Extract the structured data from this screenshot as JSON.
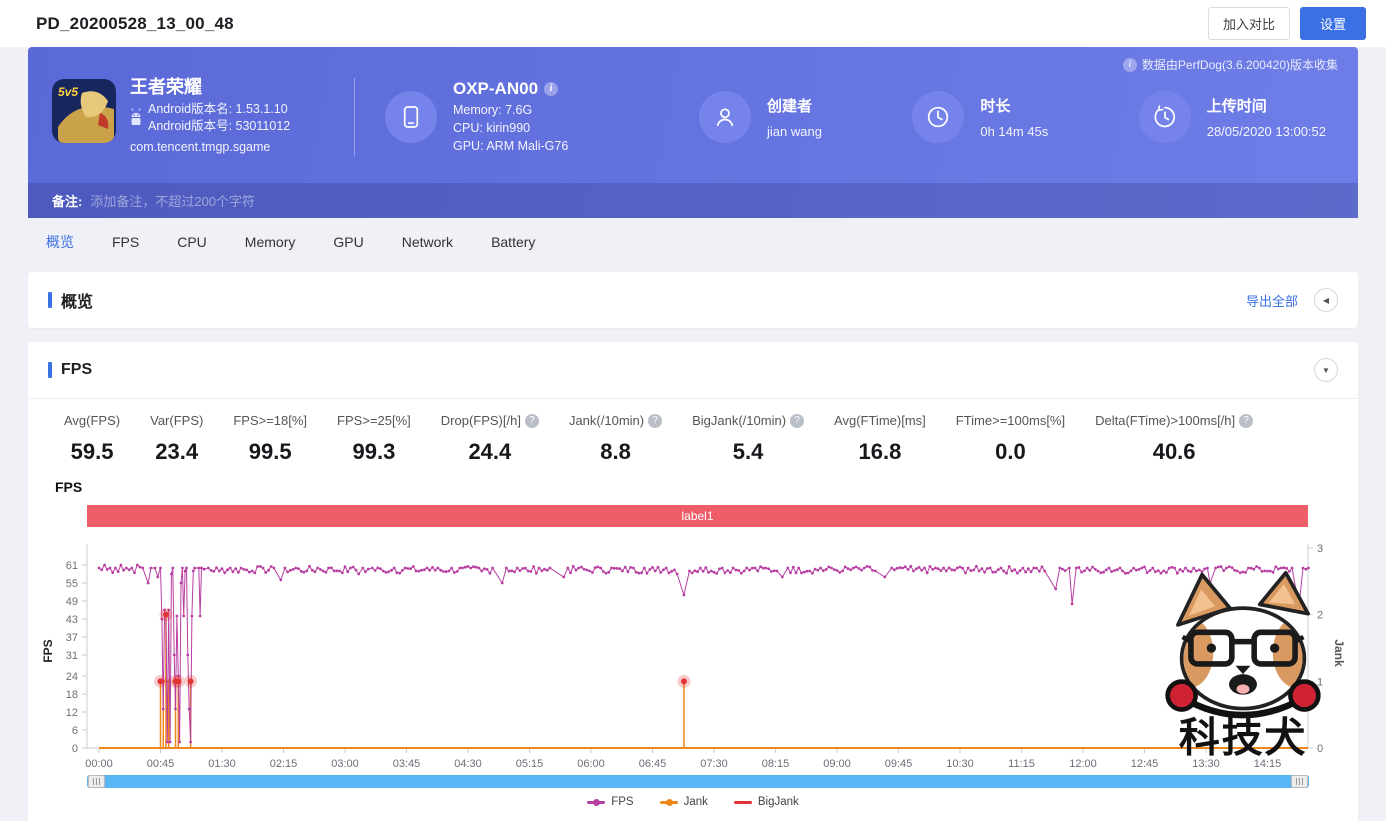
{
  "page": {
    "title": "PD_20200528_13_00_48"
  },
  "topbar": {
    "compare_button": "加入对比",
    "settings_button": "设置"
  },
  "icons": {
    "help": "?",
    "info": "i",
    "collapse_left": "◀",
    "collapse_down": "▼"
  },
  "colors": {
    "accent": "#3a70e3",
    "hero_from": "#5b69d8",
    "hero_to": "#6f7de8",
    "banner": "#ed5e68",
    "fps_line": "#b83fa2",
    "jank_line": "#f0871a",
    "bigjank": "#e23434",
    "scrollbar": "#57b6f3"
  },
  "hero": {
    "collect_note": "数据由PerfDog(3.6.200420)版本收集",
    "app": {
      "name": "王者荣耀",
      "version_name": "Android版本名: 1.53.1.10",
      "version_code": "Android版本号: 53011012",
      "package": "com.tencent.tmgp.sgame",
      "icon_badge": "5v5"
    },
    "device": {
      "model": "OXP-AN00",
      "memory": "Memory: 7.6G",
      "cpu": "CPU: kirin990",
      "gpu": "GPU: ARM Mali-G76"
    },
    "creator": {
      "label": "创建者",
      "value": "jian wang"
    },
    "duration": {
      "label": "时长",
      "value": "0h 14m 45s"
    },
    "upload": {
      "label": "上传时间",
      "value": "28/05/2020 13:00:52"
    },
    "remark": {
      "label": "备注:",
      "placeholder": "添加备注，不超过200个字符"
    }
  },
  "tabs": [
    {
      "label": "概览",
      "active": true
    },
    {
      "label": "FPS",
      "active": false
    },
    {
      "label": "CPU",
      "active": false
    },
    {
      "label": "Memory",
      "active": false
    },
    {
      "label": "GPU",
      "active": false
    },
    {
      "label": "Network",
      "active": false
    },
    {
      "label": "Battery",
      "active": false
    }
  ],
  "overview_section": {
    "title": "概览",
    "export_all": "导出全部"
  },
  "fps_section": {
    "title": "FPS",
    "stats": [
      {
        "label": "Avg(FPS)",
        "value": "59.5",
        "help": false
      },
      {
        "label": "Var(FPS)",
        "value": "23.4",
        "help": false
      },
      {
        "label": "FPS>=18[%]",
        "value": "99.5",
        "help": false
      },
      {
        "label": "FPS>=25[%]",
        "value": "99.3",
        "help": false
      },
      {
        "label": "Drop(FPS)[/h]",
        "value": "24.4",
        "help": true
      },
      {
        "label": "Jank(/10min)",
        "value": "8.8",
        "help": true
      },
      {
        "label": "BigJank(/10min)",
        "value": "5.4",
        "help": true
      },
      {
        "label": "Avg(FTime)[ms]",
        "value": "16.8",
        "help": false
      },
      {
        "label": "FTime>=100ms[%]",
        "value": "0.0",
        "help": false
      },
      {
        "label": "Delta(FTime)>100ms[/h]",
        "value": "40.6",
        "help": true
      }
    ]
  },
  "chart_data": {
    "type": "line",
    "title": "FPS",
    "annotation_label": "label1",
    "duration_s": 885,
    "x_tick_interval_s": 45,
    "x_ticks": [
      "00:00",
      "00:45",
      "01:30",
      "02:15",
      "03:00",
      "03:45",
      "04:30",
      "05:15",
      "06:00",
      "06:45",
      "07:30",
      "08:15",
      "09:00",
      "09:45",
      "10:30",
      "11:15",
      "12:00",
      "12:45",
      "13:30",
      "14:15"
    ],
    "left_axis": {
      "label": "FPS",
      "ticks": [
        0,
        6,
        12,
        18,
        24,
        31,
        37,
        43,
        49,
        55,
        61
      ],
      "max": 61
    },
    "right_axis": {
      "label": "Jank",
      "ticks": [
        0,
        1,
        2,
        3
      ],
      "max": 3
    },
    "legend": [
      "FPS",
      "Jank",
      "BigJank"
    ],
    "series": [
      {
        "name": "FPS",
        "axis": "left",
        "color": "#b83fa2",
        "points": [
          [
            0,
            60
          ],
          [
            4,
            61
          ],
          [
            8,
            60
          ],
          [
            12,
            60
          ],
          [
            16,
            61
          ],
          [
            20,
            60
          ],
          [
            24,
            60
          ],
          [
            28,
            61
          ],
          [
            32,
            60
          ],
          [
            36,
            55
          ],
          [
            38,
            60
          ],
          [
            41,
            60
          ],
          [
            43,
            57
          ],
          [
            45,
            60
          ],
          [
            46,
            43
          ],
          [
            47,
            13
          ],
          [
            48,
            46
          ],
          [
            49,
            44
          ],
          [
            50,
            2
          ],
          [
            51,
            46
          ],
          [
            52,
            2
          ],
          [
            53,
            58
          ],
          [
            54,
            60
          ],
          [
            55,
            31
          ],
          [
            56,
            13
          ],
          [
            57,
            44
          ],
          [
            58,
            24
          ],
          [
            59,
            2
          ],
          [
            60,
            55
          ],
          [
            61,
            60
          ],
          [
            62,
            44
          ],
          [
            63,
            59
          ],
          [
            64,
            60
          ],
          [
            65,
            31
          ],
          [
            66,
            13
          ],
          [
            67,
            2
          ],
          [
            68,
            44
          ],
          [
            69,
            59
          ],
          [
            70,
            60
          ],
          [
            73,
            60
          ],
          [
            74,
            44
          ],
          [
            75,
            60
          ],
          [
            80,
            60
          ],
          [
            88,
            59
          ],
          [
            96,
            60
          ],
          [
            104,
            60
          ],
          [
            112,
            59
          ],
          [
            120,
            60
          ],
          [
            128,
            60
          ],
          [
            133,
            56
          ],
          [
            136,
            60
          ],
          [
            144,
            60
          ],
          [
            152,
            59
          ],
          [
            160,
            60
          ],
          [
            168,
            60
          ],
          [
            176,
            59
          ],
          [
            184,
            60
          ],
          [
            190,
            58
          ],
          [
            193,
            60
          ],
          [
            200,
            60
          ],
          [
            208,
            59
          ],
          [
            216,
            60
          ],
          [
            224,
            60
          ],
          [
            232,
            59
          ],
          [
            240,
            60
          ],
          [
            248,
            60
          ],
          [
            256,
            59
          ],
          [
            264,
            60
          ],
          [
            272,
            60
          ],
          [
            280,
            59
          ],
          [
            288,
            60
          ],
          [
            295,
            55
          ],
          [
            298,
            60
          ],
          [
            306,
            60
          ],
          [
            314,
            59
          ],
          [
            322,
            60
          ],
          [
            330,
            60
          ],
          [
            340,
            57
          ],
          [
            343,
            60
          ],
          [
            351,
            60
          ],
          [
            359,
            59
          ],
          [
            367,
            60
          ],
          [
            375,
            60
          ],
          [
            383,
            59
          ],
          [
            391,
            60
          ],
          [
            399,
            60
          ],
          [
            407,
            59
          ],
          [
            415,
            60
          ],
          [
            423,
            58
          ],
          [
            428,
            51
          ],
          [
            432,
            59
          ],
          [
            440,
            60
          ],
          [
            448,
            59
          ],
          [
            456,
            60
          ],
          [
            464,
            60
          ],
          [
            472,
            59
          ],
          [
            480,
            60
          ],
          [
            488,
            60
          ],
          [
            496,
            59
          ],
          [
            500,
            57
          ],
          [
            504,
            60
          ],
          [
            512,
            60
          ],
          [
            520,
            59
          ],
          [
            528,
            60
          ],
          [
            536,
            60
          ],
          [
            544,
            59
          ],
          [
            552,
            60
          ],
          [
            560,
            60
          ],
          [
            568,
            59
          ],
          [
            575,
            57
          ],
          [
            580,
            60
          ],
          [
            588,
            60
          ],
          [
            596,
            59
          ],
          [
            604,
            60
          ],
          [
            612,
            60
          ],
          [
            620,
            59
          ],
          [
            628,
            60
          ],
          [
            636,
            60
          ],
          [
            644,
            59
          ],
          [
            652,
            60
          ],
          [
            660,
            60
          ],
          [
            668,
            59
          ],
          [
            676,
            60
          ],
          [
            684,
            60
          ],
          [
            692,
            59
          ],
          [
            700,
            53
          ],
          [
            703,
            60
          ],
          [
            710,
            60
          ],
          [
            712,
            48
          ],
          [
            715,
            60
          ],
          [
            723,
            60
          ],
          [
            731,
            59
          ],
          [
            739,
            60
          ],
          [
            747,
            60
          ],
          [
            755,
            59
          ],
          [
            763,
            60
          ],
          [
            771,
            60
          ],
          [
            779,
            59
          ],
          [
            787,
            60
          ],
          [
            795,
            60
          ],
          [
            803,
            59
          ],
          [
            811,
            60
          ],
          [
            813,
            55
          ],
          [
            817,
            60
          ],
          [
            825,
            60
          ],
          [
            833,
            59
          ],
          [
            841,
            60
          ],
          [
            849,
            60
          ],
          [
            857,
            59
          ],
          [
            865,
            60
          ],
          [
            873,
            60
          ],
          [
            878,
            47
          ],
          [
            881,
            60
          ],
          [
            885,
            60
          ]
        ]
      },
      {
        "name": "Jank",
        "axis": "right",
        "color": "#f0871a",
        "style": "stem",
        "events": [
          [
            45,
            1
          ],
          [
            47,
            1
          ],
          [
            49,
            2
          ],
          [
            51,
            1
          ],
          [
            56,
            1
          ],
          [
            58,
            1
          ],
          [
            67,
            1
          ],
          [
            428,
            1
          ]
        ]
      },
      {
        "name": "BigJank",
        "axis": "right",
        "color": "#e23434",
        "style": "marker",
        "events": [
          [
            45,
            1
          ],
          [
            49,
            2
          ],
          [
            56,
            1
          ],
          [
            58,
            1
          ],
          [
            67,
            1
          ],
          [
            428,
            1
          ]
        ]
      }
    ]
  },
  "watermark": {
    "text": "科技犬"
  }
}
